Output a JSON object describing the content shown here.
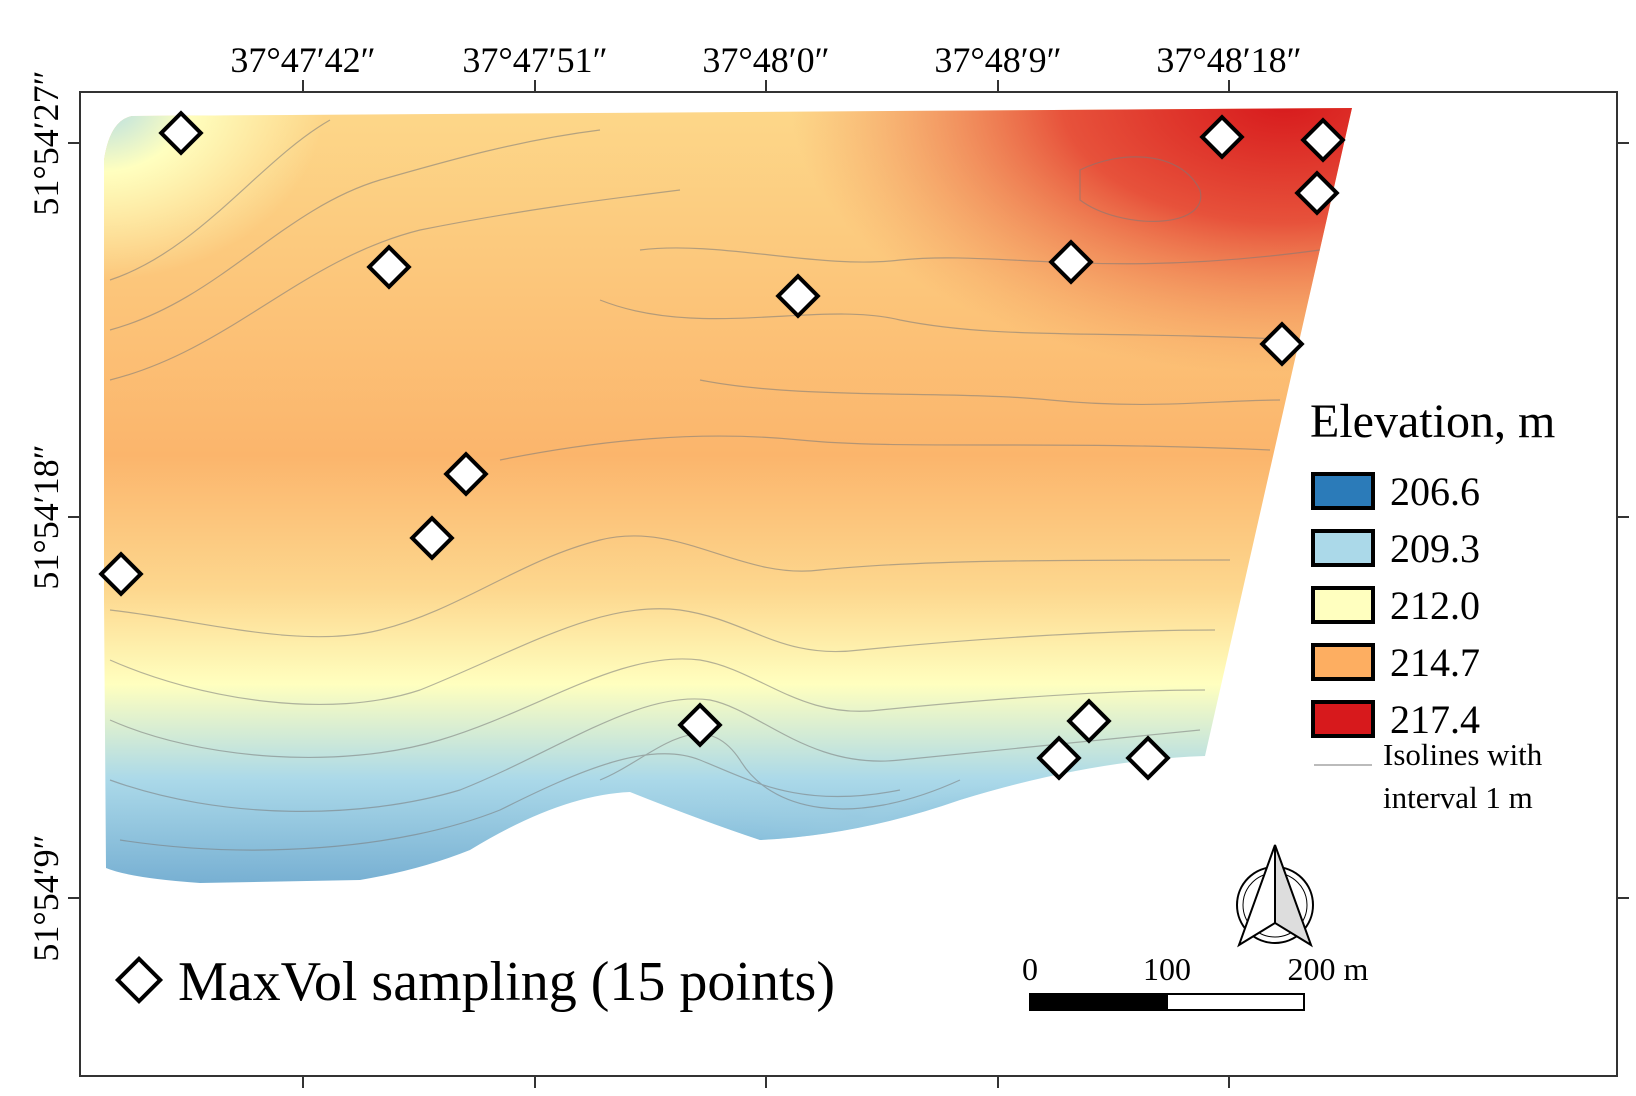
{
  "map": {
    "coordinates": {
      "longitude_ticks": [
        "37°47′42″",
        "37°47′51″",
        "37°48′0″",
        "37°48′9″",
        "37°48′18″"
      ],
      "latitude_ticks": [
        "51°54′27″",
        "51°54′18″",
        "51°54′9″"
      ]
    },
    "legend": {
      "title": "Elevation, m",
      "classes": [
        {
          "label": "206.6",
          "color": "#2b7bb9"
        },
        {
          "label": "209.3",
          "color": "#abd9e9"
        },
        {
          "label": "212.0",
          "color": "#ffffbf"
        },
        {
          "label": "214.7",
          "color": "#fdae61"
        },
        {
          "label": "217.4",
          "color": "#d7191c"
        }
      ],
      "isolines_line1": "Isolines with",
      "isolines_line2": "interval 1 m"
    },
    "sampling": {
      "label": "MaxVol sampling (15 points)"
    },
    "scale_bar": {
      "labels": [
        "0",
        "100",
        "200 m"
      ]
    },
    "north_arrow": {
      "icon": "north-arrow-icon"
    }
  }
}
